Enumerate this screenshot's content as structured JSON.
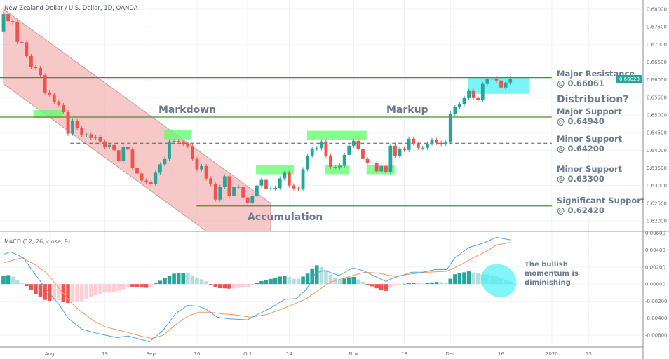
{
  "title": "New Zealand Dollar / U.S. Dollar, 1D, OANDA",
  "current_price": "0.66028",
  "colors": {
    "up": "#26a69a",
    "down": "#ef5350",
    "hist_up_weak": "#b2dfdb",
    "hist_down_weak": "#ffcdd2",
    "macd": "#4aa3f0",
    "signal": "#f5955a",
    "level": "#4c8c2b",
    "channel": "#f4b6b6",
    "box_green": "#5cff6a",
    "box_cyan": "#4ff0f5",
    "label": "#6b7a8c"
  },
  "chart_data": [
    {
      "type": "candlestick",
      "first_open": 0.6737,
      "close": [
        0.6786,
        0.6766,
        0.6763,
        0.6707,
        0.6706,
        0.6667,
        0.6637,
        0.6633,
        0.6613,
        0.6564,
        0.6558,
        0.6538,
        0.6528,
        0.6508,
        0.6447,
        0.6483,
        0.6463,
        0.6443,
        0.6445,
        0.6435,
        0.6437,
        0.6425,
        0.6409,
        0.6415,
        0.64,
        0.637,
        0.6409,
        0.6402,
        0.635,
        0.6334,
        0.6314,
        0.631,
        0.6305,
        0.6336,
        0.636,
        0.6375,
        0.6425,
        0.6426,
        0.6424,
        0.6418,
        0.6412,
        0.6375,
        0.6346,
        0.6355,
        0.632,
        0.6304,
        0.626,
        0.6296,
        0.6326,
        0.627,
        0.6296,
        0.6296,
        0.6266,
        0.625,
        0.627,
        0.63,
        0.6316,
        0.629,
        0.6292,
        0.6293,
        0.632,
        0.6336,
        0.63,
        0.6292,
        0.629,
        0.6346,
        0.6385,
        0.6405,
        0.6406,
        0.6425,
        0.6385,
        0.6353,
        0.6352,
        0.6356,
        0.6387,
        0.6413,
        0.6427,
        0.6403,
        0.6375,
        0.6365,
        0.6364,
        0.634,
        0.6355,
        0.6337,
        0.6413,
        0.6383,
        0.6405,
        0.6401,
        0.6433,
        0.6419,
        0.6407,
        0.6407,
        0.6419,
        0.6429,
        0.6421,
        0.6418,
        0.6422,
        0.6504,
        0.6522,
        0.653,
        0.6548,
        0.6568,
        0.6548,
        0.6543,
        0.6588,
        0.6602,
        0.6603,
        0.6598,
        0.6578,
        0.6592,
        0.66028
      ],
      "y_range": [
        0.617,
        0.6826
      ],
      "y_ticks": [
        "0.68000",
        "0.67500",
        "0.67000",
        "0.66500",
        "0.66000",
        "0.65500",
        "0.65000",
        "0.64500",
        "0.64000",
        "0.63500",
        "0.63000",
        "0.62500",
        "0.62000"
      ],
      "x_ticks": [
        {
          "label": "Aug",
          "bar": 10
        },
        {
          "label": "19",
          "bar": 22
        },
        {
          "label": "Sep",
          "bar": 32
        },
        {
          "label": "16",
          "bar": 42
        },
        {
          "label": "Oct",
          "bar": 53
        },
        {
          "label": "14",
          "bar": 62
        },
        {
          "label": "Nov",
          "bar": 76
        },
        {
          "label": "18",
          "bar": 87
        },
        {
          "label": "Dec",
          "bar": 97
        },
        {
          "label": "16",
          "bar": 108
        },
        {
          "label": "2020",
          "bar": 119
        },
        {
          "label": "13",
          "bar": 127
        }
      ],
      "levels": [
        {
          "name": "Major Resistance",
          "price": 0.66061,
          "style": "solid",
          "from_bar": -1,
          "line1": "Major Resistance",
          "line2": "@ 0.66061"
        },
        {
          "name": "Major Support",
          "price": 0.6494,
          "style": "solid",
          "from_bar": -1,
          "line1": "Major Support",
          "line2": "@ 0.64940"
        },
        {
          "name": "Minor Support",
          "price": 0.642,
          "style": "dashed",
          "from_bar": 14.5,
          "line1": "Minor Support",
          "line2": "@ 0.64200"
        },
        {
          "name": "Minor Support",
          "price": 0.633,
          "style": "dashed",
          "from_bar": 23.6,
          "line1": "Minor Support",
          "line2": "@ 0.63300"
        },
        {
          "name": "Significant Support",
          "price": 0.6242,
          "style": "solid",
          "from_bar": 41.9,
          "line1": "Significant Support",
          "line2": "@ 0.62420"
        }
      ],
      "channel": {
        "upper": [
          [
            0,
            0.68
          ],
          [
            58,
            0.625
          ]
        ],
        "lower_start": [
          0,
          0.6588
        ]
      },
      "zones": [
        {
          "color": "green",
          "from_bar": 6.5,
          "to_bar": 12.9,
          "top": 0.6514,
          "bottom": 0.6492
        },
        {
          "color": "green",
          "from_bar": 34.9,
          "to_bar": 40.8,
          "top": 0.6457,
          "bottom": 0.6431
        },
        {
          "color": "green",
          "from_bar": 54.8,
          "to_bar": 63,
          "top": 0.6358,
          "bottom": 0.6332
        },
        {
          "color": "green",
          "from_bar": 65.9,
          "to_bar": 78.8,
          "top": 0.6455,
          "bottom": 0.6429
        },
        {
          "color": "green",
          "from_bar": 69.7,
          "to_bar": 74.9,
          "top": 0.6358,
          "bottom": 0.6332
        },
        {
          "color": "green",
          "from_bar": 78.8,
          "to_bar": 84.9,
          "top": 0.6358,
          "bottom": 0.6332
        },
        {
          "color": "cyan",
          "from_bar": 100.9,
          "to_bar": 114.2,
          "top": 0.6606,
          "bottom": 0.656
        }
      ],
      "annotations": {
        "markdown": "Markdown",
        "markup": "Markup",
        "accumulation": "Accumulation",
        "distribution": "Distribution?"
      }
    },
    {
      "type": "line",
      "title": "MACD (12, 26, close, 9)",
      "y_range": [
        -0.007,
        0.0062
      ],
      "y_ticks": [
        "0.00600",
        "0.00400",
        "0.00200",
        "0.00000",
        "-0.00200",
        "-0.00400",
        "-0.00600"
      ],
      "series": [
        {
          "key": "macd",
          "points": [
            [
              0,
              0.0035
            ],
            [
              1.5,
              0.0038
            ],
            [
              4.3,
              0.0031
            ],
            [
              6.8,
              0.0012
            ],
            [
              9.4,
              -0.0007
            ],
            [
              11.9,
              -0.0023
            ],
            [
              14,
              -0.004
            ],
            [
              17,
              -0.0053
            ],
            [
              19.5,
              -0.0057
            ],
            [
              22,
              -0.006
            ],
            [
              24.7,
              -0.0063
            ],
            [
              27,
              -0.0061
            ],
            [
              29.7,
              -0.0065
            ],
            [
              31.7,
              -0.0068
            ],
            [
              34.7,
              -0.0054
            ],
            [
              37.3,
              -0.0035
            ],
            [
              39.9,
              -0.0025
            ],
            [
              42.3,
              -0.0026
            ],
            [
              43.8,
              -0.0029
            ],
            [
              46.4,
              -0.0039
            ],
            [
              49,
              -0.0041
            ],
            [
              53,
              -0.0042
            ],
            [
              55,
              -0.0036
            ],
            [
              57,
              -0.0031
            ],
            [
              58,
              -0.0028
            ],
            [
              61,
              -0.0018
            ],
            [
              63.6,
              -0.0017
            ],
            [
              65.8,
              -0.0006
            ],
            [
              67.7,
              0.0013
            ],
            [
              69.7,
              0.0016
            ],
            [
              72.8,
              0.001
            ],
            [
              75.8,
              0.0019
            ],
            [
              78,
              0.0016
            ],
            [
              81,
              0.0008
            ],
            [
              83,
              0.0003
            ],
            [
              84.5,
              0.0007
            ],
            [
              87,
              0.0011
            ],
            [
              88.6,
              0.0014
            ],
            [
              91,
              0.0014
            ],
            [
              93.6,
              0.0017
            ],
            [
              96.2,
              0.0017
            ],
            [
              98,
              0.0031
            ],
            [
              101,
              0.0043
            ],
            [
              104,
              0.0048
            ],
            [
              107,
              0.0055
            ],
            [
              110,
              0.0052
            ]
          ]
        },
        {
          "key": "signal",
          "points": [
            [
              0,
              0.0025
            ],
            [
              4,
              0.0031
            ],
            [
              6.8,
              0.0023
            ],
            [
              9.4,
              0.0013
            ],
            [
              11.9,
              -0.0004
            ],
            [
              14.5,
              -0.0021
            ],
            [
              17,
              -0.0033
            ],
            [
              19.5,
              -0.0043
            ],
            [
              22,
              -0.005
            ],
            [
              24.7,
              -0.0054
            ],
            [
              27,
              -0.0057
            ],
            [
              29.7,
              -0.0061
            ],
            [
              32.3,
              -0.0064
            ],
            [
              34.7,
              -0.006
            ],
            [
              37.3,
              -0.0048
            ],
            [
              39.9,
              -0.0038
            ],
            [
              42.3,
              -0.0033
            ],
            [
              44.9,
              -0.0033
            ],
            [
              47.5,
              -0.0035
            ],
            [
              50,
              -0.0036
            ],
            [
              53.6,
              -0.0039
            ],
            [
              57,
              -0.0036
            ],
            [
              60.6,
              -0.0029
            ],
            [
              65.8,
              -0.0017
            ],
            [
              70.8,
              0.0002
            ],
            [
              75.8,
              0.001
            ],
            [
              78.4,
              0.0014
            ],
            [
              81,
              0.0013
            ],
            [
              85,
              0.0009
            ],
            [
              88.6,
              0.0012
            ],
            [
              92,
              0.0014
            ],
            [
              96.2,
              0.0015
            ],
            [
              98.6,
              0.0021
            ],
            [
              102.3,
              0.0032
            ],
            [
              105.3,
              0.004
            ],
            [
              107,
              0.0046
            ],
            [
              110,
              0.0049
            ]
          ]
        }
      ],
      "annotation": {
        "line1": "The bullish",
        "line2": "momentum is",
        "line3": "diminishing",
        "highlight": {
          "bar": 107.5,
          "value": 0.0004
        }
      }
    }
  ]
}
